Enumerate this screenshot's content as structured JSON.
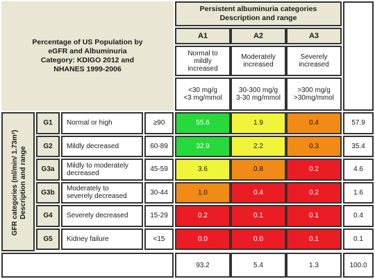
{
  "title": {
    "line1": "Percentage of US Population by",
    "line2": "eGFR and Albuminuria",
    "line3": "Category: KDIGO 2012 and",
    "line4": "NHANES 1999-2006"
  },
  "albuminuria_header": {
    "line1": "Persistent albuminuria categories",
    "line2": "Description and range"
  },
  "columns": [
    {
      "code": "A1",
      "desc": [
        "Normal to",
        "mildly",
        "increased"
      ],
      "range": [
        "<30 mg/g",
        "<3 mg/mmol"
      ]
    },
    {
      "code": "A2",
      "desc": [
        "Moderately",
        "increased"
      ],
      "range": [
        "30-300 mg/g",
        "3-30 mg/mmol"
      ]
    },
    {
      "code": "A3",
      "desc": [
        "Severely",
        "increased"
      ],
      "range": [
        ">300 mg/g",
        ">30mg/mmol"
      ]
    }
  ],
  "gfr_header": {
    "line1": "GFR categories (ml/min/ 1.73m²)",
    "line2": "Description and range"
  },
  "rows": [
    {
      "code": "G1",
      "desc": [
        "Normal or high"
      ],
      "range": "≥90",
      "values": [
        "55.6",
        "1.9",
        "0.4"
      ],
      "total": "57.9"
    },
    {
      "code": "G2",
      "desc": [
        "Mildly decreased"
      ],
      "range": "60-89",
      "values": [
        "32.9",
        "2.2",
        "0.3"
      ],
      "total": "35.4"
    },
    {
      "code": "G3a",
      "desc": [
        "Mildly to moderately",
        "decreased"
      ],
      "range": "45-59",
      "values": [
        "3.6",
        "0.8",
        "0.2"
      ],
      "total": "4.6"
    },
    {
      "code": "G3b",
      "desc": [
        "Moderately to",
        "severely decreased"
      ],
      "range": "30-44",
      "values": [
        "1.0",
        "0.4",
        "0.2"
      ],
      "total": "1.6"
    },
    {
      "code": "G4",
      "desc": [
        "Severely decreased"
      ],
      "range": "15-29",
      "values": [
        "0.2",
        "0.1",
        "0.1"
      ],
      "total": "0.4"
    },
    {
      "code": "G5",
      "desc": [
        "Kidney failure"
      ],
      "range": "<15",
      "values": [
        "0.0",
        "0.0",
        "0.1"
      ],
      "total": "0.1"
    }
  ],
  "column_totals": [
    "93.2",
    "5.4",
    "1.3"
  ],
  "grand_total": "100.0",
  "risk_colors": {
    "green": "#27d93a",
    "yellow": "#f1f53a",
    "orange": "#f28a16",
    "red": "#ec1c24"
  },
  "risk_levels": [
    [
      "green",
      "yellow",
      "orange"
    ],
    [
      "green",
      "yellow",
      "orange"
    ],
    [
      "yellow",
      "orange",
      "red"
    ],
    [
      "orange",
      "red",
      "red"
    ],
    [
      "red",
      "red",
      "red"
    ],
    [
      "red",
      "red",
      "red"
    ]
  ]
}
